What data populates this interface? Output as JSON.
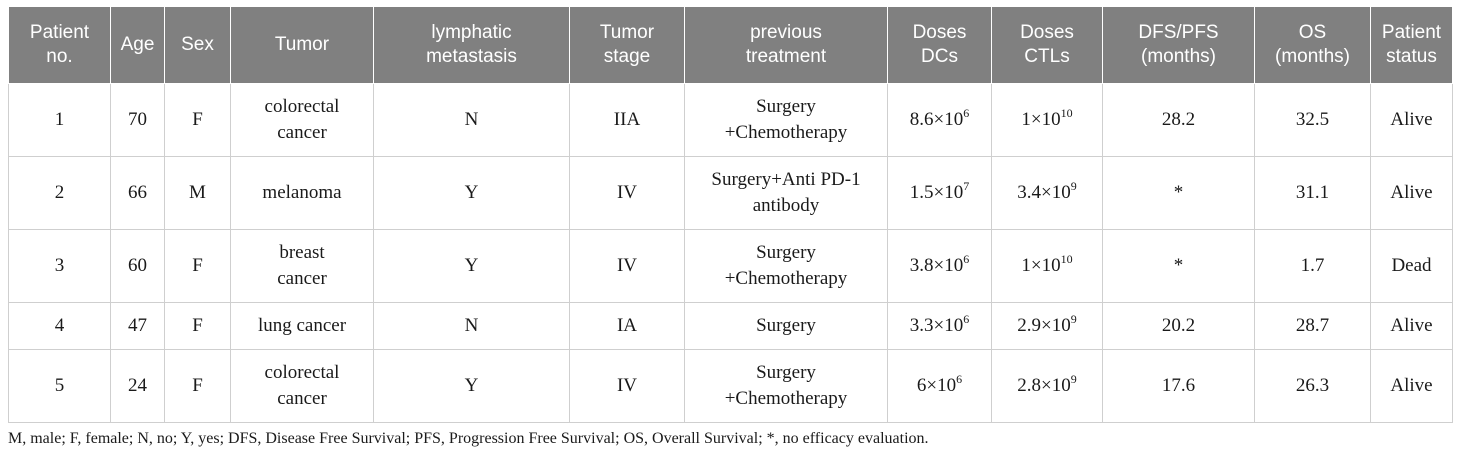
{
  "headers": [
    "Patient\nno.",
    "Age",
    "Sex",
    "Tumor",
    "lymphatic\nmetastasis",
    "Tumor\nstage",
    "previous\ntreatment",
    "Doses\nDCs",
    "Doses\nCTLs",
    "DFS/PFS\n(months)",
    "OS\n(months)",
    "Patient\nstatus"
  ],
  "rows": [
    {
      "patient_no": "1",
      "age": "70",
      "sex": "F",
      "tumor": "colorectal\ncancer",
      "lymphatic_metastasis": "N",
      "tumor_stage": "IIA",
      "previous_treatment": "Surgery\n+Chemotherapy",
      "dcs_base": "8.6×10",
      "dcs_exp": "6",
      "ctls_base": "1×10",
      "ctls_exp": "10",
      "dfs_pfs": "28.2",
      "os": "32.5",
      "status": "Alive"
    },
    {
      "patient_no": "2",
      "age": "66",
      "sex": "M",
      "tumor": "melanoma",
      "lymphatic_metastasis": "Y",
      "tumor_stage": "IV",
      "previous_treatment": "Surgery+Anti PD-1\nantibody",
      "dcs_base": "1.5×10",
      "dcs_exp": "7",
      "ctls_base": "3.4×10",
      "ctls_exp": "9",
      "dfs_pfs": "*",
      "os": "31.1",
      "status": "Alive"
    },
    {
      "patient_no": "3",
      "age": "60",
      "sex": "F",
      "tumor": "breast\ncancer",
      "lymphatic_metastasis": "Y",
      "tumor_stage": "IV",
      "previous_treatment": "Surgery\n+Chemotherapy",
      "dcs_base": "3.8×10",
      "dcs_exp": "6",
      "ctls_base": "1×10",
      "ctls_exp": "10",
      "dfs_pfs": "*",
      "os": "1.7",
      "status": "Dead"
    },
    {
      "patient_no": "4",
      "age": "47",
      "sex": "F",
      "tumor": "lung cancer",
      "lymphatic_metastasis": "N",
      "tumor_stage": "IA",
      "previous_treatment": "Surgery",
      "dcs_base": "3.3×10",
      "dcs_exp": "6",
      "ctls_base": "2.9×10",
      "ctls_exp": "9",
      "dfs_pfs": "20.2",
      "os": "28.7",
      "status": "Alive"
    },
    {
      "patient_no": "5",
      "age": "24",
      "sex": "F",
      "tumor": "colorectal\ncancer",
      "lymphatic_metastasis": "Y",
      "tumor_stage": "IV",
      "previous_treatment": "Surgery\n+Chemotherapy",
      "dcs_base": "6×10",
      "dcs_exp": "6",
      "ctls_base": "2.8×10",
      "ctls_exp": "9",
      "dfs_pfs": "17.6",
      "os": "26.3",
      "status": "Alive"
    }
  ],
  "footnote": "M, male; F, female; N, no; Y, yes; DFS, Disease Free Survival; PFS, Progression Free Survival; OS, Overall Survival; *, no efficacy evaluation.",
  "colors": {
    "header_bg": "#808080",
    "header_text": "#ffffff",
    "body_text": "#1a1a1a",
    "grid": "#cfcfcf"
  }
}
